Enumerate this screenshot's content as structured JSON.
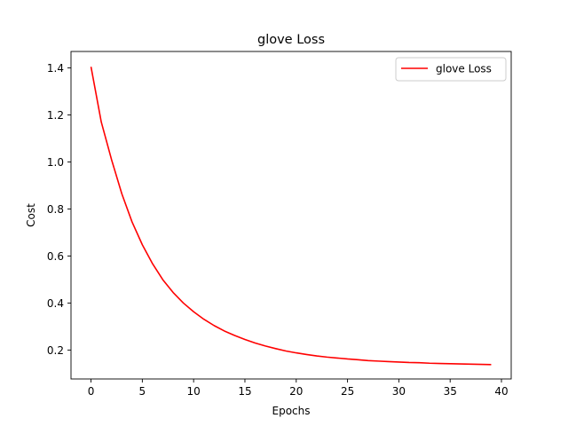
{
  "chart_data": {
    "type": "line",
    "title": "glove Loss",
    "xlabel": "Epochs",
    "ylabel": "Cost",
    "xlim": [
      -1.95,
      40.95
    ],
    "ylim": [
      0.077,
      1.47
    ],
    "xticks": [
      0,
      5,
      10,
      15,
      20,
      25,
      30,
      35,
      40
    ],
    "yticks": [
      0.2,
      0.4,
      0.6,
      0.8,
      1.0,
      1.2,
      1.4
    ],
    "grid": false,
    "legend_position": "top-right",
    "series": [
      {
        "name": "glove Loss",
        "color": "#ff0000",
        "x": [
          0,
          1,
          2,
          3,
          4,
          5,
          6,
          7,
          8,
          9,
          10,
          11,
          12,
          13,
          14,
          15,
          16,
          17,
          18,
          19,
          20,
          21,
          22,
          23,
          24,
          25,
          26,
          27,
          28,
          29,
          30,
          31,
          32,
          33,
          34,
          35,
          36,
          37,
          38,
          39
        ],
        "y": [
          1.405,
          1.17,
          1.01,
          0.865,
          0.745,
          0.648,
          0.567,
          0.499,
          0.445,
          0.4,
          0.363,
          0.331,
          0.304,
          0.281,
          0.262,
          0.245,
          0.23,
          0.217,
          0.206,
          0.196,
          0.188,
          0.181,
          0.175,
          0.17,
          0.166,
          0.162,
          0.159,
          0.155,
          0.153,
          0.151,
          0.149,
          0.147,
          0.146,
          0.144,
          0.143,
          0.142,
          0.141,
          0.14,
          0.139,
          0.138
        ]
      }
    ]
  }
}
